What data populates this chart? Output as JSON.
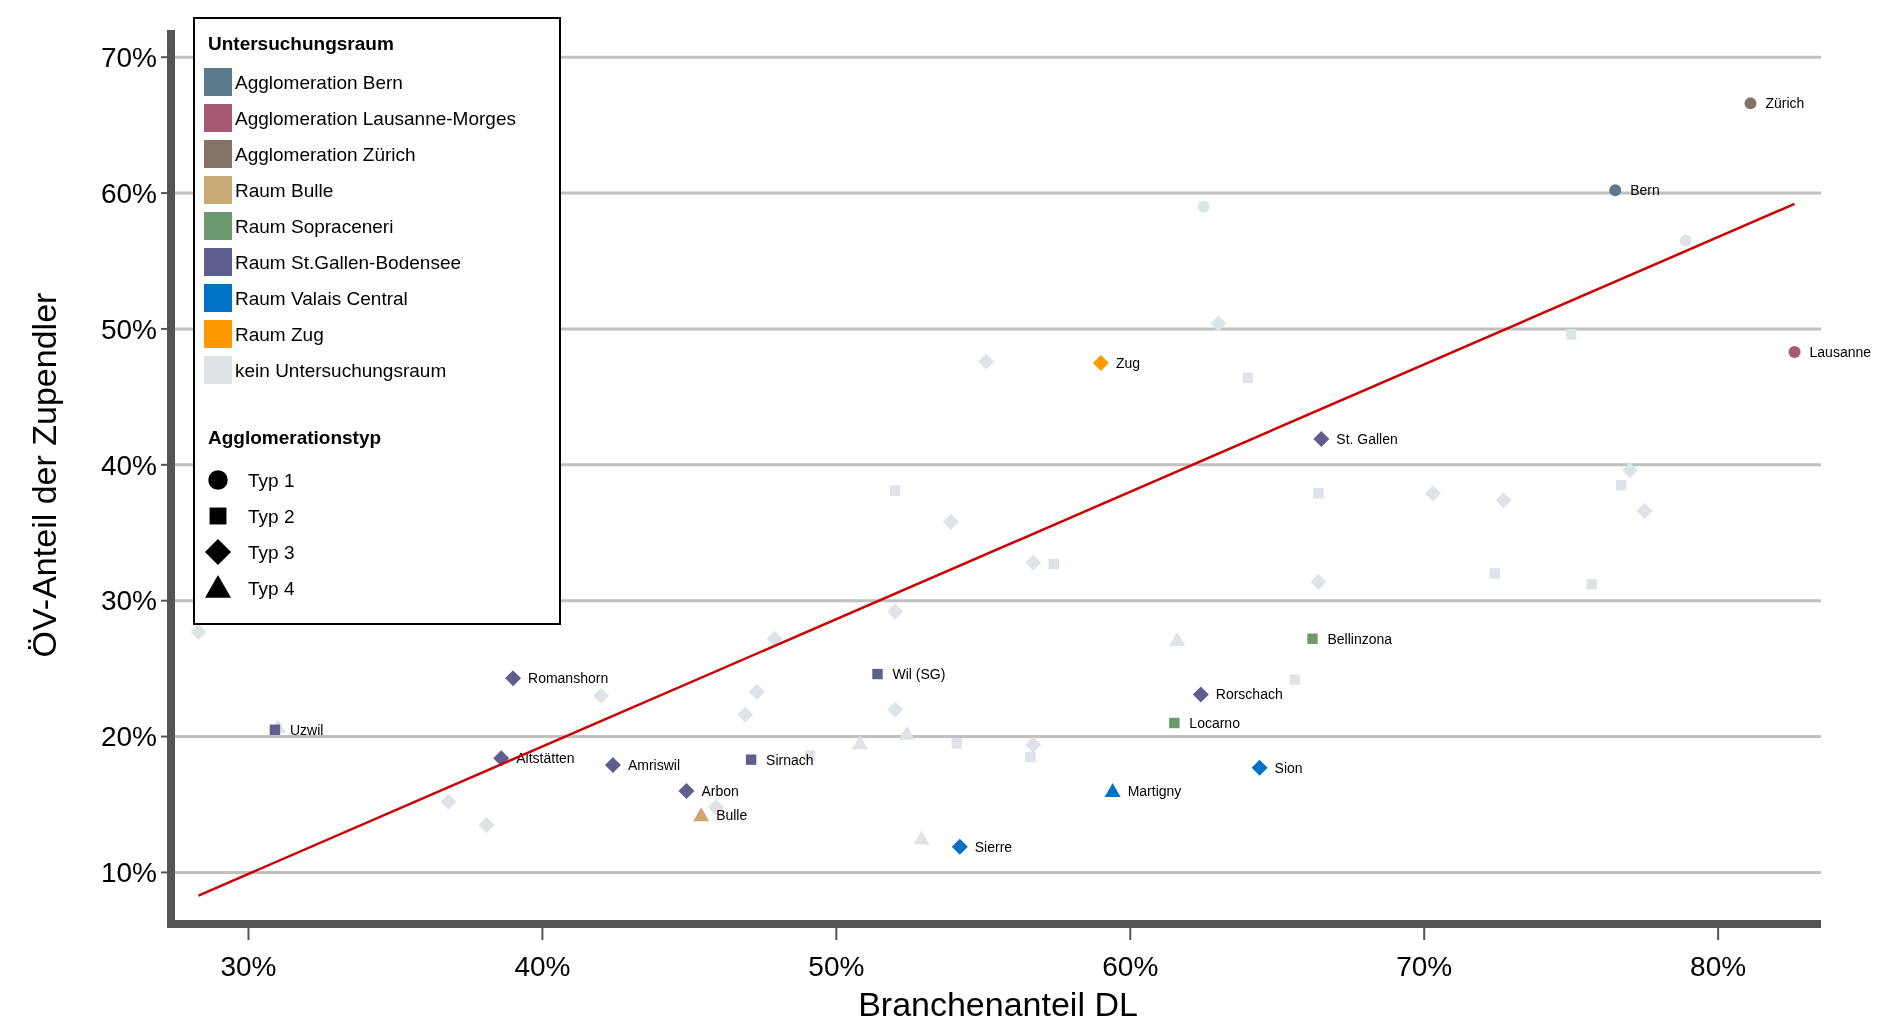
{
  "chart_data": {
    "type": "scatter",
    "xlabel": "Branchenanteil DL",
    "ylabel": "ÖV-Anteil der Zupendler",
    "xlim": [
      27.5,
      83.5
    ],
    "ylim": [
      6.5,
      72
    ],
    "xticks": [
      {
        "value": 30,
        "label": "30%"
      },
      {
        "value": 40,
        "label": "40%"
      },
      {
        "value": 50,
        "label": "50%"
      },
      {
        "value": 60,
        "label": "60%"
      },
      {
        "value": 70,
        "label": "70%"
      },
      {
        "value": 80,
        "label": "80%"
      }
    ],
    "yticks": [
      {
        "value": 10,
        "label": "10%"
      },
      {
        "value": 20,
        "label": "20%"
      },
      {
        "value": 30,
        "label": "30%"
      },
      {
        "value": 40,
        "label": "40%"
      },
      {
        "value": 50,
        "label": "50%"
      },
      {
        "value": 60,
        "label": "60%"
      },
      {
        "value": 70,
        "label": "70%"
      }
    ],
    "grid": "y",
    "legend": "top left",
    "legend_title": "Untersuchungsraum",
    "annotations": [
      "Agglomerationstyp",
      "Typ 1",
      "Typ 2",
      "Typ 3",
      "Typ 4"
    ],
    "series": [
      {
        "name": "Agglomeration Bern",
        "color": "#5b7a8c",
        "marker": "circle",
        "x": [
          76.5
        ],
        "values": [
          60.2
        ],
        "value_labels": [
          "Bern"
        ]
      },
      {
        "name": "Agglomeration Lausanne-Morges",
        "color": "#a85a72",
        "marker": "circle",
        "x": [
          82.6
        ],
        "values": [
          48.3
        ],
        "value_labels": [
          "Lausanne"
        ]
      },
      {
        "name": "Agglomeration Zürich",
        "color": "#857366",
        "marker": "circle",
        "x": [
          81.1
        ],
        "values": [
          66.6
        ],
        "value_labels": [
          "Zürich"
        ]
      },
      {
        "name": "Raum Bulle",
        "color": "#c9a874",
        "marker": "triangle",
        "x": [
          45.4
        ],
        "values": [
          14.2
        ],
        "value_labels": [
          "Bulle"
        ]
      },
      {
        "name": "Raum Sopraceneri",
        "color": "#6b9a6e",
        "marker": "square",
        "x": [
          66.2,
          61.5
        ],
        "values": [
          27.2,
          21.0
        ],
        "value_labels": [
          "Bellinzona",
          "Locarno"
        ]
      },
      {
        "name": "Raum St.Gallen-Bodensee",
        "color": "#5e5f8f",
        "marker": "diamond",
        "x": [
          66.5,
          39.0,
          38.6,
          42.4,
          44.9,
          62.4
        ],
        "values": [
          41.9,
          24.3,
          18.4,
          17.9,
          16.0,
          23.1
        ],
        "value_labels": [
          "St. Gallen",
          "Romanshorn",
          "Altstätten",
          "Amriswil",
          "Arbon",
          "Rorschach"
        ]
      },
      {
        "color": "#5e5f8f",
        "marker": "square",
        "x": [
          30.9,
          47.1,
          51.4
        ],
        "values": [
          20.5,
          18.3,
          24.6
        ],
        "value_labels": [
          "Uzwil",
          "Sirnach",
          "Wil (SG)"
        ]
      },
      {
        "name": "Raum Valais Central",
        "color": "#0072c6",
        "marker": "diamond",
        "x": [
          64.4,
          54.2
        ],
        "values": [
          17.7,
          11.9
        ],
        "value_labels": [
          "Sion",
          "Sierre"
        ]
      },
      {
        "color": "#0072c6",
        "marker": "triangle",
        "x": [
          59.4
        ],
        "values": [
          16.0
        ],
        "value_labels": [
          "Martigny"
        ]
      },
      {
        "name": "Raum Zug",
        "color": "#ff9900",
        "marker": "diamond",
        "x": [
          59.0
        ],
        "values": [
          47.5
        ],
        "value_labels": [
          "Zug"
        ]
      },
      {
        "name": "kein Untersuchungsraum",
        "color": "#dde3e6",
        "marker": "circle",
        "x": [
          62.5,
          78.9
        ],
        "values": [
          59.0,
          56.5
        ]
      },
      {
        "color": "#dde3e6",
        "marker": "square",
        "x": [
          64.0,
          52.0,
          66.4,
          75.0,
          76.7,
          72.4,
          75.7,
          57.4,
          65.6,
          54.1,
          56.6,
          49.1
        ],
        "values": [
          46.4,
          38.1,
          37.9,
          49.6,
          38.5,
          32.0,
          31.2,
          32.7,
          24.2,
          19.5,
          18.5,
          18.6
        ]
      },
      {
        "color": "#dde3e6",
        "marker": "diamond",
        "x": [
          63.0,
          55.1,
          77.0,
          77.5,
          70.3,
          72.7,
          28.3,
          42.0,
          47.3,
          46.9,
          45.9,
          36.8,
          38.1,
          47.9,
          53.9,
          56.7,
          66.4,
          52.0,
          52.0,
          56.7
        ],
        "values": [
          50.4,
          47.6,
          39.6,
          36.6,
          37.9,
          37.4,
          27.7,
          23.0,
          23.3,
          21.6,
          14.8,
          15.2,
          13.5,
          27.2,
          35.8,
          32.8,
          31.4,
          29.2,
          22.0,
          19.4
        ]
      },
      {
        "color": "#dde3e6",
        "marker": "triangle",
        "x": [
          31.0,
          61.6,
          52.4,
          50.8,
          52.9
        ],
        "values": [
          20.7,
          27.1,
          20.2,
          19.5,
          12.5
        ]
      },
      {
        "type": "line",
        "color": "#cc0000",
        "x": [
          28.3,
          82.6
        ],
        "values": [
          8.3,
          59.2
        ]
      }
    ]
  }
}
